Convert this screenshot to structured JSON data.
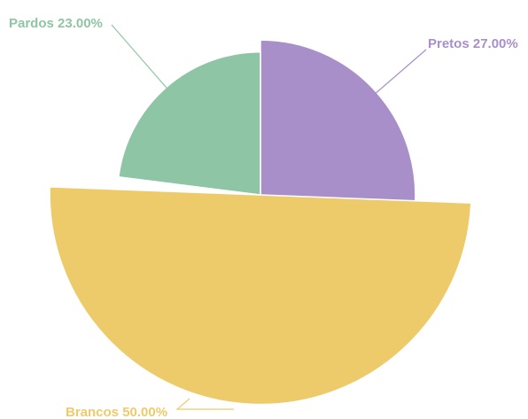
{
  "chart_data": {
    "type": "pie",
    "variant": "rose",
    "title": "",
    "slices": [
      {
        "name": "Pretos",
        "value": 27.0,
        "label": "Pretos 27.00%",
        "color": "#a98fc9"
      },
      {
        "name": "Brancos",
        "value": 50.0,
        "label": "Brancos 50.00%",
        "color": "#eecb6a"
      },
      {
        "name": "Pardos",
        "value": 23.0,
        "label": "Pardos 23.00%",
        "color": "#8ec5a5"
      }
    ]
  }
}
